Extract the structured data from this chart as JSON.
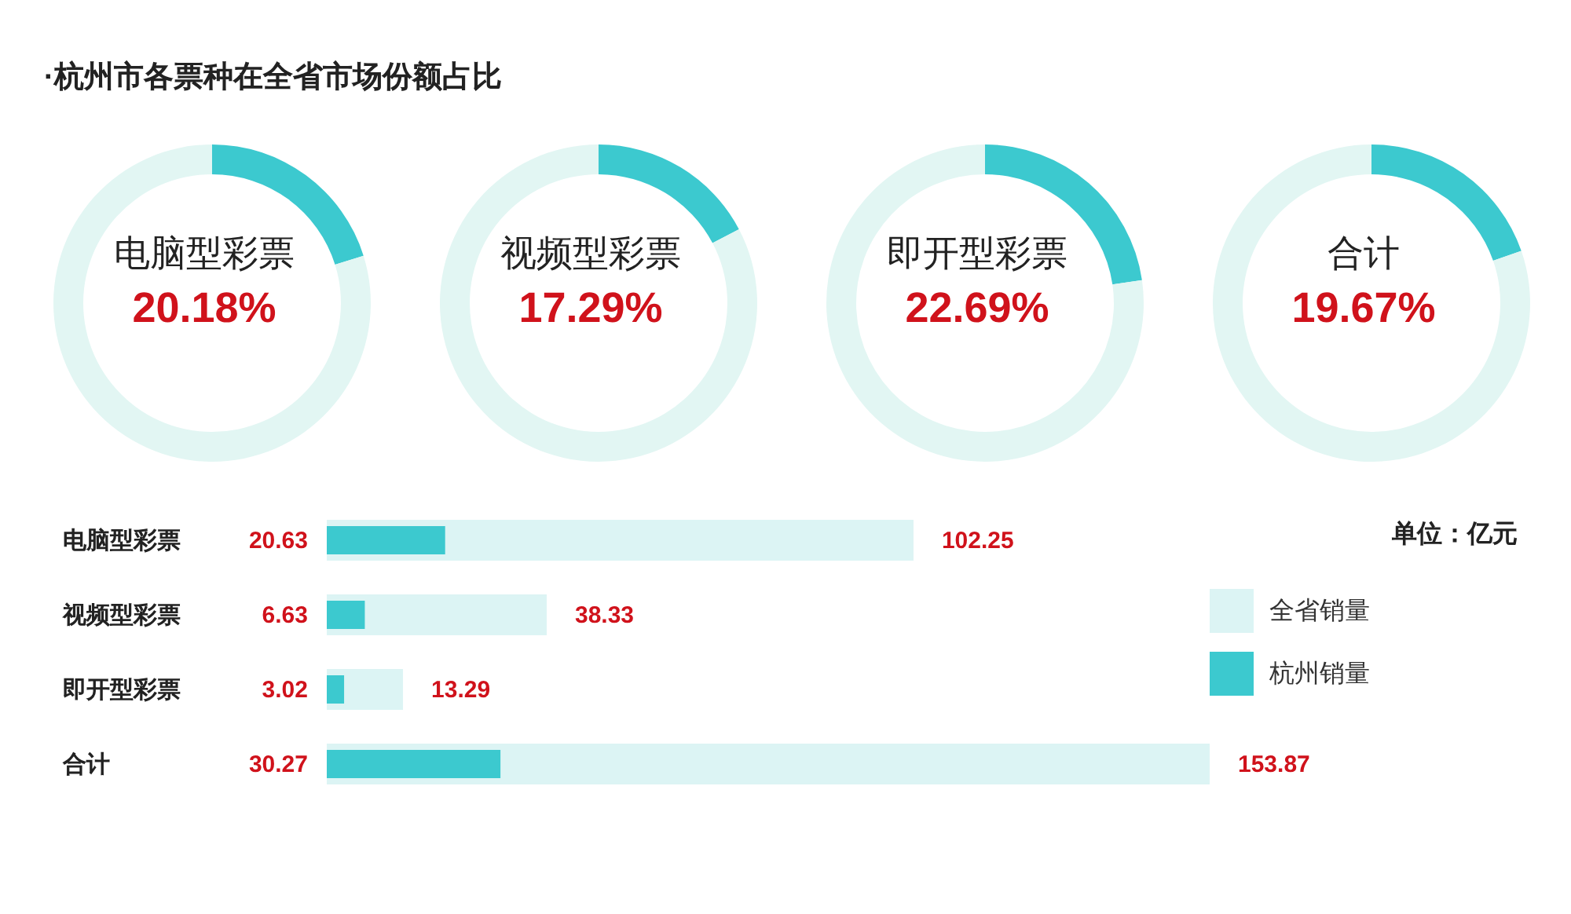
{
  "chart_data": [
    {
      "type": "donut",
      "title": "电脑型彩票",
      "subtitle": "20.18%",
      "categories": [
        null,
        null
      ],
      "values": [
        20.18,
        79.82
      ],
      "colors": [
        "#3cc9cf",
        "#e2f6f3"
      ],
      "annotations": [
        "·杭州市各票种在全省市场份额占比"
      ]
    },
    {
      "type": "donut",
      "title": "视频型彩票",
      "subtitle": "17.29%",
      "categories": [
        null,
        null
      ],
      "values": [
        17.29,
        82.71
      ],
      "colors": [
        "#3cc9cf",
        "#e2f6f3"
      ]
    },
    {
      "type": "donut",
      "title": "即开型彩票",
      "subtitle": "22.69%",
      "categories": [
        null,
        null
      ],
      "values": [
        22.69,
        77.31
      ],
      "colors": [
        "#3cc9cf",
        "#e2f6f3"
      ]
    },
    {
      "type": "donut",
      "title": "合计",
      "subtitle": "19.67%",
      "categories": [
        null,
        null
      ],
      "values": [
        19.67,
        80.33
      ],
      "colors": [
        "#3cc9cf",
        "#e2f6f3"
      ]
    },
    {
      "type": "bar",
      "orientation": "horizontal",
      "categories": [
        "电脑型彩票",
        "视频型彩票",
        "即开型彩票",
        "合计"
      ],
      "series": [
        {
          "name": "全省销量",
          "color": "#dcf4f4",
          "values": [
            102.25,
            38.33,
            13.29,
            153.87
          ]
        },
        {
          "name": "杭州销量",
          "color": "#3cc9cf",
          "values": [
            20.63,
            6.63,
            3.02,
            30.27
          ]
        }
      ],
      "tick_labels": "y",
      "data_labels": true,
      "legend": "right",
      "annotations": [
        "单位：亿元"
      ]
    }
  ]
}
